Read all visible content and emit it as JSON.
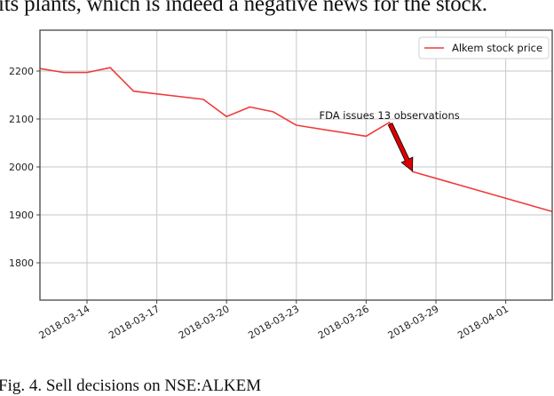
{
  "page": {
    "top_text": "its plants, which is indeed a negative news for the stock.",
    "caption": "Fig. 4.   Sell decisions on NSE:ALKEM"
  },
  "colors": {
    "line": "#f03a3a",
    "arrow": "#dd0000",
    "grid": "#d0d0d0",
    "axis": "#444444"
  },
  "chart_data": {
    "type": "line",
    "title": "",
    "xlabel": "",
    "ylabel": "",
    "grid": true,
    "legend_position": "upper right",
    "ylim": [
      1720,
      2260
    ],
    "yticks": [
      1800,
      1900,
      2000,
      2100,
      2200
    ],
    "ytick_labels": [
      "1800",
      "1900",
      "2000",
      "2100",
      "2200"
    ],
    "xticks": [
      "2018-03-14",
      "2018-03-17",
      "2018-03-20",
      "2018-03-23",
      "2018-03-26",
      "2018-03-29",
      "2018-04-01"
    ],
    "series": [
      {
        "name": "Alkem stock price",
        "x": [
          "2018-03-12",
          "2018-03-13",
          "2018-03-14",
          "2018-03-15",
          "2018-03-16",
          "2018-03-19",
          "2018-03-20",
          "2018-03-21",
          "2018-03-22",
          "2018-03-23",
          "2018-03-26",
          "2018-03-27",
          "2018-03-28",
          "2018-04-03"
        ],
        "values": [
          2205,
          2197,
          2197,
          2207,
          2158,
          2141,
          2105,
          2125,
          2115,
          2087,
          2064,
          2093,
          1990,
          1907
        ]
      }
    ],
    "annotations": [
      {
        "text": "FDA issues 13 observations",
        "xytext": [
          "2018-03-27",
          2093
        ],
        "xy": [
          "2018-03-28",
          1990
        ],
        "arrow": true
      }
    ]
  }
}
